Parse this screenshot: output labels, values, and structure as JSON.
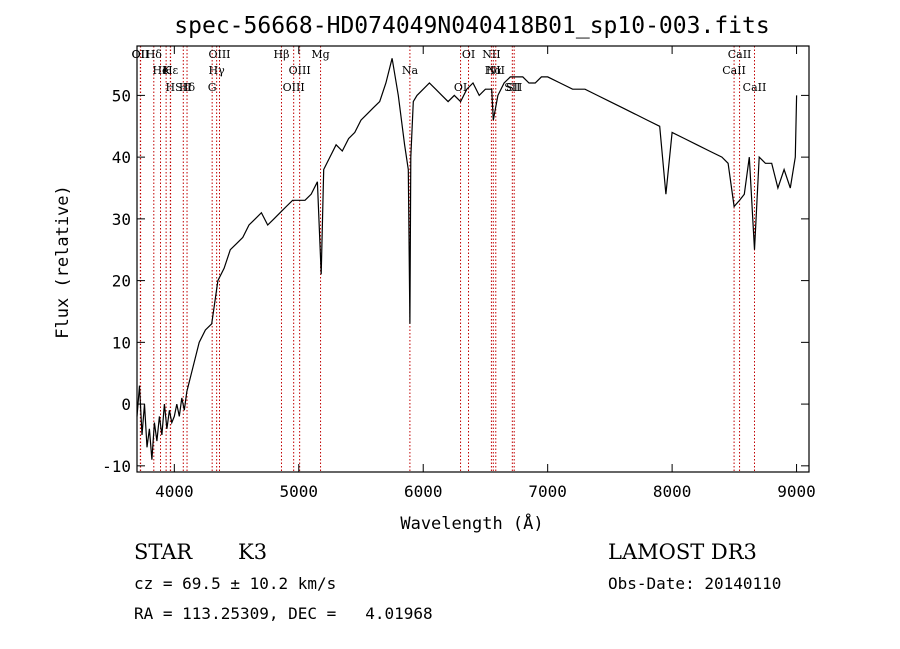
{
  "chart_data": {
    "type": "line",
    "title": "spec-56668-HD074049N040418B01_sp10-003.fits",
    "xlabel": "Wavelength (Å)",
    "ylabel": "Flux (relative)",
    "xlim": [
      3700,
      9100
    ],
    "ylim": [
      -11,
      58
    ],
    "xticks": [
      4000,
      5000,
      6000,
      7000,
      8000,
      9000
    ],
    "yticks": [
      -10,
      0,
      10,
      20,
      30,
      40,
      50
    ],
    "grid": false,
    "series": [
      {
        "x": [
          3700,
          3720,
          3740,
          3760,
          3780,
          3800,
          3820,
          3840,
          3860,
          3880,
          3900,
          3920,
          3940,
          3960,
          3980,
          4000,
          4020,
          4040,
          4060,
          4080,
          4100,
          4150,
          4200,
          4250,
          4300,
          4350,
          4400,
          4450,
          4500,
          4550,
          4600,
          4650,
          4700,
          4750,
          4800,
          4850,
          4900,
          4950,
          5000,
          5050,
          5100,
          5150,
          5180,
          5200,
          5250,
          5300,
          5350,
          5400,
          5450,
          5500,
          5550,
          5600,
          5650,
          5700,
          5750,
          5800,
          5850,
          5880,
          5893,
          5900,
          5920,
          5950,
          6000,
          6050,
          6100,
          6150,
          6200,
          6250,
          6300,
          6350,
          6400,
          6450,
          6500,
          6550,
          6563,
          6600,
          6650,
          6700,
          6750,
          6800,
          6850,
          6900,
          6950,
          7000,
          7100,
          7200,
          7300,
          7400,
          7500,
          7600,
          7700,
          7800,
          7900,
          7950,
          8000,
          8100,
          8200,
          8300,
          8400,
          8450,
          8498,
          8542,
          8580,
          8620,
          8662,
          8700,
          8750,
          8800,
          8850,
          8900,
          8950,
          8990,
          9000
        ],
        "y": [
          -2,
          3,
          -5,
          0,
          -7,
          -4,
          -9,
          -3,
          -6,
          -2,
          -5,
          0,
          -4,
          -1,
          -3,
          -2,
          0,
          -2,
          1,
          -1,
          2,
          6,
          10,
          12,
          13,
          20,
          22,
          25,
          26,
          27,
          29,
          30,
          31,
          29,
          30,
          31,
          32,
          33,
          33,
          33,
          34,
          36,
          21,
          38,
          40,
          42,
          41,
          43,
          44,
          46,
          47,
          48,
          49,
          52,
          56,
          50,
          42,
          38,
          13,
          40,
          49,
          50,
          51,
          52,
          51,
          50,
          49,
          50,
          49,
          51,
          52,
          50,
          51,
          51,
          46,
          50,
          52,
          53,
          53,
          53,
          52,
          52,
          53,
          53,
          52,
          51,
          51,
          50,
          49,
          48,
          47,
          46,
          45,
          34,
          44,
          43,
          42,
          41,
          40,
          39,
          32,
          33,
          34,
          40,
          25,
          40,
          39,
          39,
          35,
          38,
          35,
          40,
          50
        ]
      }
    ],
    "line_markers": [
      {
        "label": "Hδ",
        "x": 3835
      },
      {
        "label": "K",
        "x": 3934
      },
      {
        "label": "Hδ",
        "x": 4102
      },
      {
        "label": "OII",
        "x": 3727
      },
      {
        "label": "He",
        "x": 3889
      },
      {
        "label": "SII",
        "x": 4072
      },
      {
        "label": "OII",
        "x": 3729
      },
      {
        "label": "Hε",
        "x": 3970
      },
      {
        "label": "H",
        "x": 3968
      },
      {
        "label": "OIII",
        "x": 4363
      },
      {
        "label": "Hγ",
        "x": 4340
      },
      {
        "label": "G",
        "x": 4304
      },
      {
        "label": "Hβ",
        "x": 4861
      },
      {
        "label": "OIII",
        "x": 5007
      },
      {
        "label": "OIII",
        "x": 4959
      },
      {
        "label": "Mg",
        "x": 5175
      },
      {
        "label": "Na",
        "x": 5893
      },
      {
        "label": "OI",
        "x": 6300
      },
      {
        "label": "OI",
        "x": 6364
      },
      {
        "label": "Hα",
        "x": 6563
      },
      {
        "label": "SII",
        "x": 6716
      },
      {
        "label": "NII",
        "x": 6548
      },
      {
        "label": "NII",
        "x": 6583
      },
      {
        "label": "SII",
        "x": 6731
      },
      {
        "label": "CaII",
        "x": 8542
      },
      {
        "label": "CaII",
        "x": 8498
      },
      {
        "label": "CaII",
        "x": 8662
      }
    ],
    "marker_color": "#c00000",
    "line_color": "#000000"
  },
  "info": {
    "object_class": "STAR",
    "subclass": "K3",
    "survey": "LAMOST DR3",
    "cz": "cz = 69.5 ± 10.2 km/s",
    "obs_date": "Obs-Date: 20140110",
    "radec": "RA = 113.25309, DEC =   4.01968"
  }
}
